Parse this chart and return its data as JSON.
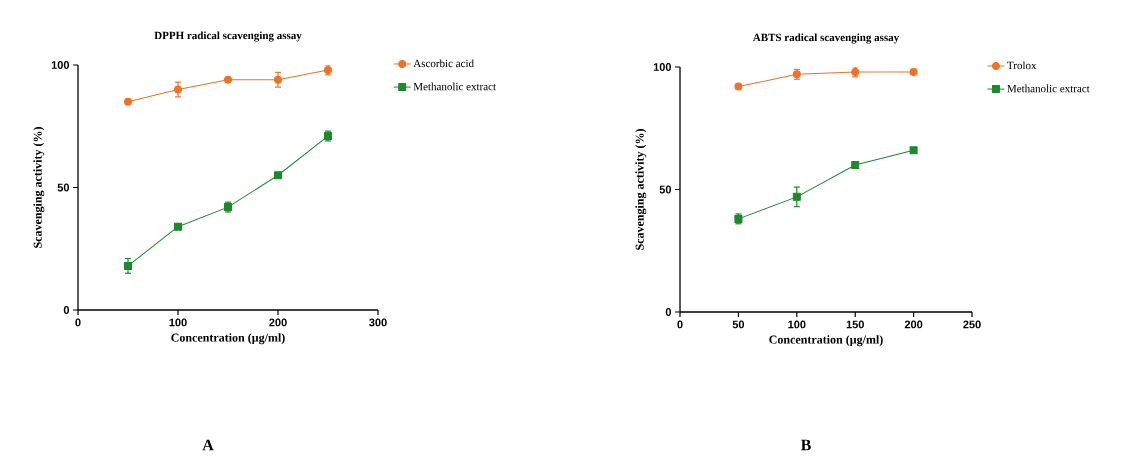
{
  "chart_data": [
    {
      "type": "line",
      "title": "DPPH radical scavenging assay",
      "xlabel": "Concentration (µg/ml)",
      "ylabel": "Scavenging activity (%)",
      "x": [
        50,
        100,
        150,
        200,
        250
      ],
      "xlim": [
        0,
        300
      ],
      "xticks": [
        0,
        100,
        200,
        300
      ],
      "ylim": [
        0,
        100
      ],
      "yticks": [
        0,
        50,
        100
      ],
      "grid": false,
      "legend": "top right",
      "line_style": "solid",
      "series": [
        {
          "name": "Ascorbic acid",
          "color": "#f07026",
          "marker": "circle",
          "values": [
            85,
            90,
            94,
            94,
            98
          ],
          "errors": [
            1,
            3,
            1,
            3,
            2
          ]
        },
        {
          "name": "Methanolic extract",
          "color": "#1a8a2a",
          "marker": "square",
          "values": [
            18,
            34,
            42,
            55,
            71
          ],
          "errors": [
            3,
            1,
            2,
            1,
            2
          ]
        }
      ],
      "annotations": [
        "A"
      ]
    },
    {
      "type": "line",
      "title": "ABTS radical scavenging assay",
      "xlabel": "Concentration (µg/ml)",
      "ylabel": "Scavenging activity (%)",
      "x": [
        50,
        100,
        150,
        200
      ],
      "xlim": [
        0,
        250
      ],
      "xticks": [
        0,
        50,
        100,
        150,
        200,
        250
      ],
      "ylim": [
        0,
        100
      ],
      "yticks": [
        0,
        50,
        100
      ],
      "grid": false,
      "legend": "top right",
      "line_style": "solid",
      "series": [
        {
          "name": "Trolox",
          "color": "#f07026",
          "marker": "circle",
          "values": [
            92,
            97,
            98,
            98
          ],
          "errors": [
            1,
            2,
            2,
            1
          ]
        },
        {
          "name": "Methanolic extract",
          "color": "#1a8a2a",
          "marker": "square",
          "values": [
            38,
            47,
            60,
            66
          ],
          "errors": [
            2,
            4,
            1,
            1
          ]
        }
      ],
      "annotations": [
        "B"
      ]
    }
  ]
}
